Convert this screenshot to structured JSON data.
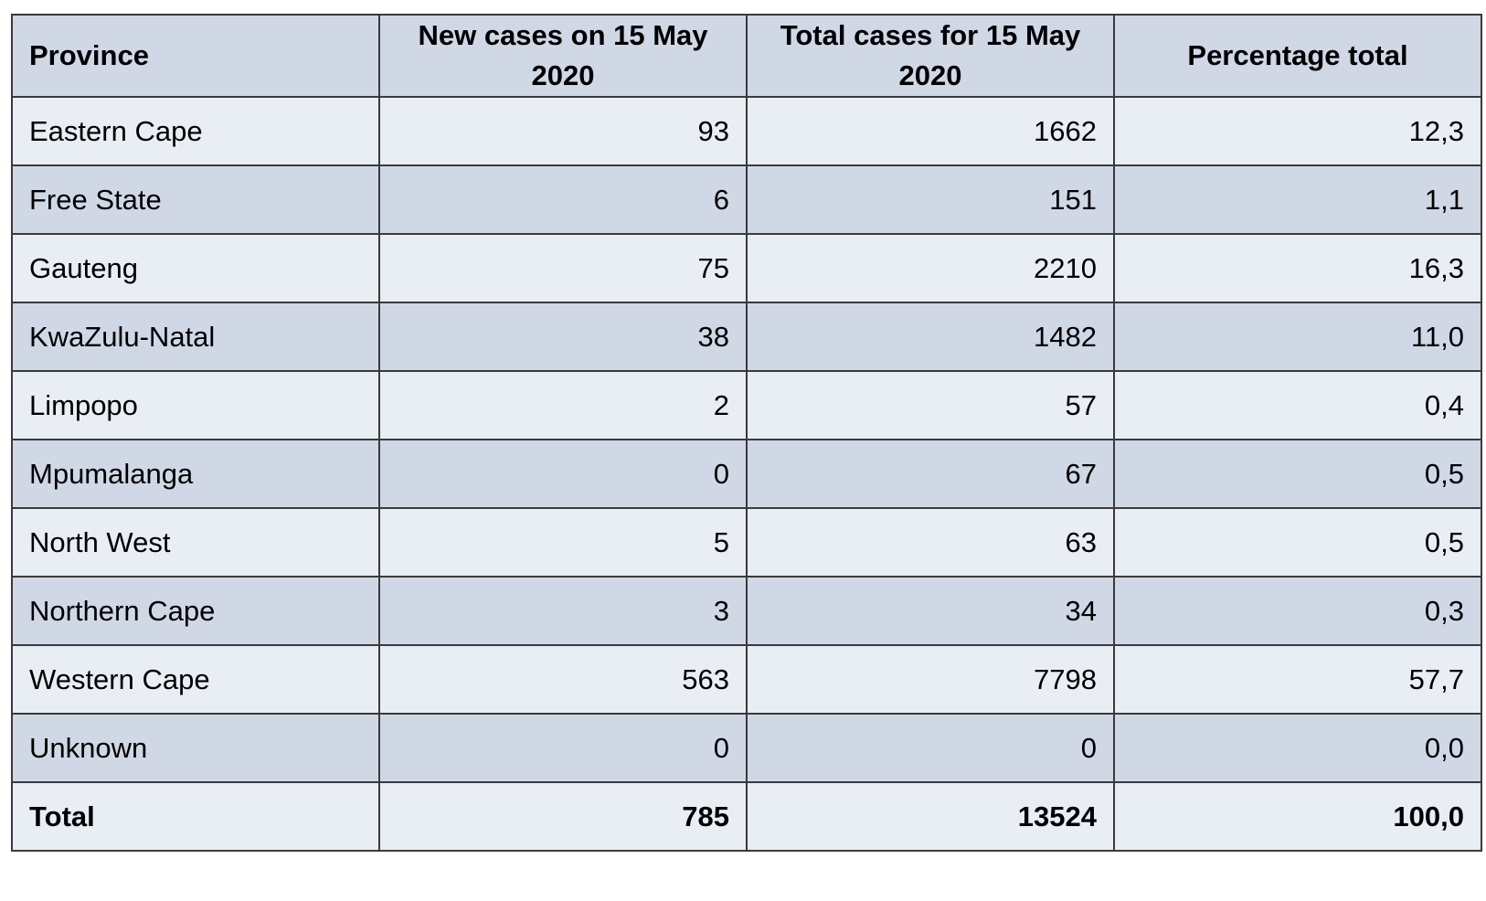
{
  "chart_data": {
    "type": "table",
    "columns": [
      "Province",
      "New cases on 15 May 2020",
      "Total cases for 15 May 2020",
      "Percentage total"
    ],
    "rows": [
      {
        "province": "Eastern Cape",
        "new_cases": "93",
        "total_cases": "1662",
        "percentage": "12,3"
      },
      {
        "province": "Free State",
        "new_cases": "6",
        "total_cases": "151",
        "percentage": "1,1"
      },
      {
        "province": "Gauteng",
        "new_cases": "75",
        "total_cases": "2210",
        "percentage": "16,3"
      },
      {
        "province": "KwaZulu-Natal",
        "new_cases": "38",
        "total_cases": "1482",
        "percentage": "11,0"
      },
      {
        "province": "Limpopo",
        "new_cases": "2",
        "total_cases": "57",
        "percentage": "0,4"
      },
      {
        "province": "Mpumalanga",
        "new_cases": "0",
        "total_cases": "67",
        "percentage": "0,5"
      },
      {
        "province": "North West",
        "new_cases": "5",
        "total_cases": "63",
        "percentage": "0,5"
      },
      {
        "province": "Northern Cape",
        "new_cases": "3",
        "total_cases": "34",
        "percentage": "0,3"
      },
      {
        "province": "Western Cape",
        "new_cases": "563",
        "total_cases": "7798",
        "percentage": "57,7"
      },
      {
        "province": "Unknown",
        "new_cases": "0",
        "total_cases": "0",
        "percentage": "0,0"
      }
    ],
    "total": {
      "province": "Total",
      "new_cases": "785",
      "total_cases": "13524",
      "percentage": "100,0"
    }
  },
  "colors": {
    "header_bg": "#d0d8e6",
    "row_light": "#e9edf4",
    "row_dark": "#d0d8e6",
    "border": "#3a3a3a"
  }
}
